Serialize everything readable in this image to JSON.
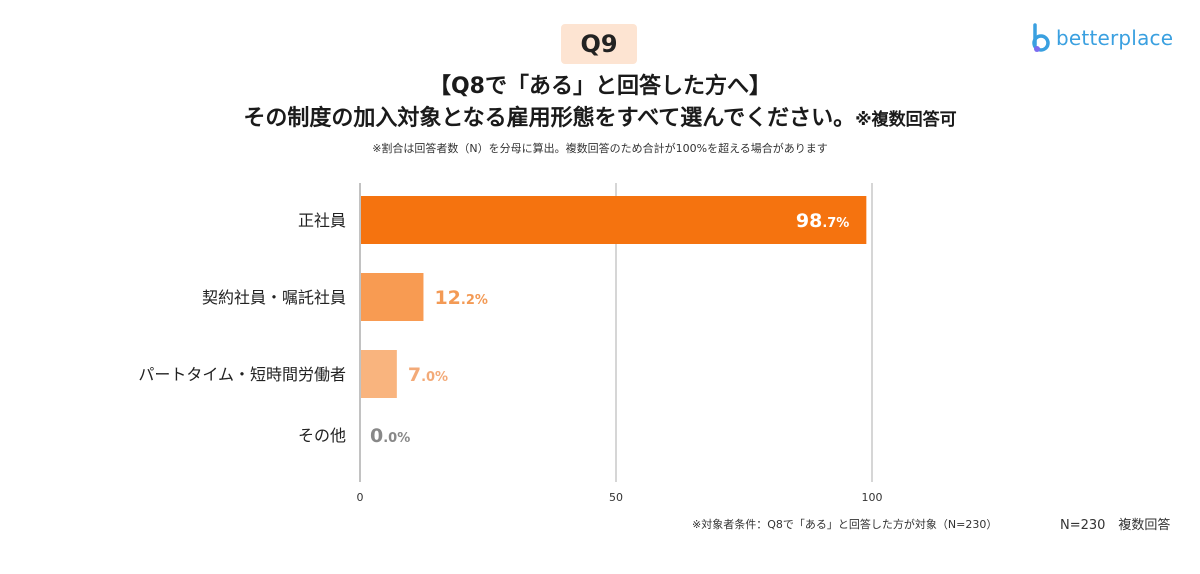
{
  "badge": "Q9",
  "logo_text": "betterplace",
  "title_line1": "【Q8で「ある」と回答した方へ】",
  "title_line2": "その制度の加入対象となる雇用形態をすべて選んでください。",
  "title_line2_suffix": "※複数回答可",
  "note": "※割合は回答者数（N）を分母に算出。複数回答のため合計が100%を超える場合があります",
  "footer_condition": "※対象者条件：Q8で「ある」と回答した方が対象（N=230）",
  "footer_n": "N=230　複数回答",
  "colors": {
    "bar1": "#f5730f",
    "bar2": "#f89b52",
    "bar3": "#f9b47e",
    "label2": "#f39a55",
    "label3": "#f3aa78",
    "label_zero": "#888888",
    "grid": "#bbbbbb",
    "logo": "#3aa0e0"
  },
  "chart_data": {
    "type": "bar",
    "orientation": "horizontal",
    "categories": [
      "正社員",
      "契約社員・嘱託社員",
      "パートタイム・短時間労働者",
      "その他"
    ],
    "values": [
      98.7,
      12.2,
      7.0,
      0.0
    ],
    "value_labels": [
      {
        "main": "98",
        "dec": ".7%"
      },
      {
        "main": "12",
        "dec": ".2%"
      },
      {
        "main": "7",
        "dec": ".0%"
      },
      {
        "main": "0",
        "dec": ".0%"
      }
    ],
    "xlim": [
      0,
      100
    ],
    "xticks": [
      "0",
      "50",
      "100"
    ],
    "grid": true
  }
}
